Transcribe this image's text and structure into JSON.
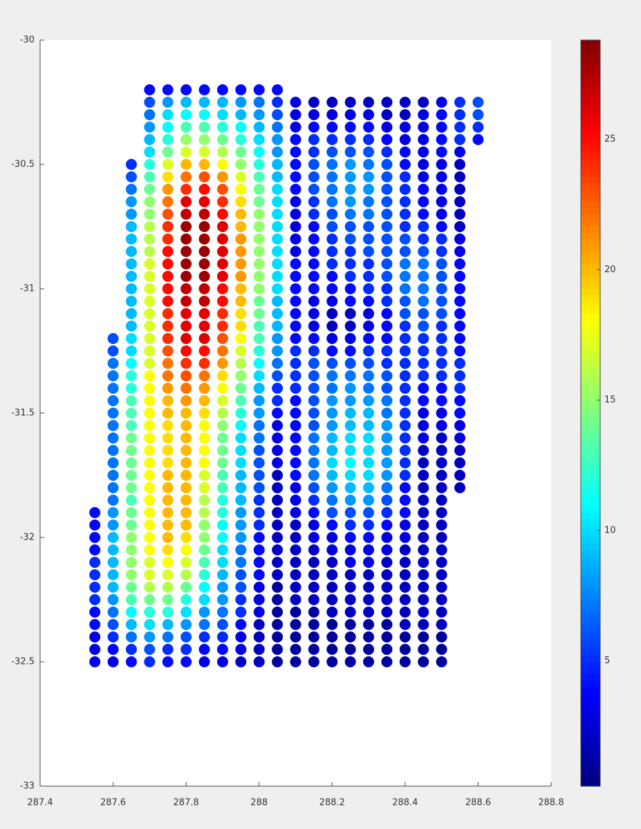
{
  "chart_data": {
    "type": "scatter-grid",
    "colormap": "jet",
    "x": [
      287.55,
      287.6,
      287.65,
      287.7,
      287.75,
      287.8,
      287.85,
      287.9,
      287.95,
      288.0,
      288.05,
      288.1,
      288.15,
      288.2,
      288.25,
      288.3,
      288.35,
      288.4,
      288.45,
      288.5,
      288.55,
      288.6
    ],
    "y": [
      -30.2,
      -30.25,
      -30.3,
      -30.35,
      -30.4,
      -30.45,
      -30.5,
      -30.55,
      -30.6,
      -30.65,
      -30.7,
      -30.75,
      -30.8,
      -30.85,
      -30.9,
      -30.95,
      -31.0,
      -31.05,
      -31.1,
      -31.15,
      -31.2,
      -31.25,
      -31.3,
      -31.35,
      -31.4,
      -31.45,
      -31.5,
      -31.55,
      -31.6,
      -31.65,
      -31.7,
      -31.75,
      -31.8,
      -31.85,
      -31.9,
      -31.95,
      -32.0,
      -32.05,
      -32.1,
      -32.15,
      -32.2,
      -32.25,
      -32.3,
      -32.35,
      -32.4,
      -32.45,
      -32.5
    ],
    "values": [
      [
        null,
        null,
        null,
        4,
        4,
        4,
        4,
        4,
        4,
        4,
        4,
        null,
        null,
        null,
        null,
        null,
        null,
        null,
        null,
        null,
        null,
        null
      ],
      [
        null,
        null,
        null,
        6,
        8,
        9,
        9,
        9,
        8,
        7,
        5,
        3,
        2,
        2,
        2,
        2,
        2,
        2,
        2,
        3,
        5,
        6
      ],
      [
        null,
        null,
        null,
        7,
        10,
        11,
        11,
        10,
        9,
        8,
        6,
        3,
        3,
        3,
        3,
        3,
        2,
        2,
        3,
        4,
        5,
        6
      ],
      [
        null,
        null,
        null,
        8,
        11,
        13,
        13,
        12,
        11,
        9,
        7,
        3,
        4,
        4,
        4,
        4,
        3,
        3,
        3,
        4,
        5,
        5
      ],
      [
        null,
        null,
        null,
        9,
        12,
        15,
        15,
        14,
        12,
        10,
        8,
        4,
        5,
        5,
        5,
        5,
        4,
        3,
        3,
        4,
        5,
        4
      ],
      [
        null,
        null,
        null,
        10,
        14,
        17,
        17,
        16,
        14,
        11,
        8,
        4,
        5,
        6,
        6,
        6,
        5,
        4,
        3,
        4,
        3,
        null
      ],
      [
        null,
        null,
        5,
        12,
        17,
        20,
        20,
        18,
        15,
        12,
        9,
        4,
        6,
        7,
        8,
        7,
        6,
        4,
        3,
        3,
        2,
        null
      ],
      [
        null,
        null,
        6,
        13,
        19,
        22,
        23,
        21,
        17,
        13,
        9,
        4,
        6,
        7,
        8,
        8,
        6,
        5,
        3,
        3,
        2,
        null
      ],
      [
        null,
        null,
        7,
        14,
        21,
        24,
        25,
        23,
        18,
        14,
        10,
        4,
        6,
        7,
        8,
        8,
        6,
        5,
        4,
        3,
        2,
        null
      ],
      [
        null,
        null,
        8,
        15,
        22,
        26,
        26,
        24,
        19,
        14,
        10,
        3,
        5,
        7,
        8,
        7,
        6,
        5,
        4,
        3,
        2,
        null
      ],
      [
        null,
        null,
        8,
        15,
        23,
        27,
        27,
        25,
        20,
        15,
        10,
        3,
        5,
        6,
        7,
        7,
        6,
        5,
        4,
        3,
        2,
        null
      ],
      [
        null,
        null,
        9,
        16,
        24,
        28,
        28,
        26,
        20,
        15,
        10,
        3,
        4,
        6,
        6,
        6,
        6,
        5,
        5,
        4,
        2,
        null
      ],
      [
        null,
        null,
        9,
        16,
        24,
        28,
        28,
        26,
        21,
        15,
        10,
        3,
        4,
        5,
        6,
        6,
        6,
        6,
        5,
        5,
        3,
        null
      ],
      [
        null,
        null,
        9,
        16,
        25,
        28,
        28,
        26,
        21,
        15,
        10,
        3,
        4,
        5,
        5,
        6,
        6,
        6,
        6,
        5,
        3,
        null
      ],
      [
        null,
        null,
        9,
        17,
        25,
        28,
        28,
        26,
        21,
        15,
        10,
        4,
        4,
        5,
        5,
        5,
        6,
        7,
        7,
        6,
        4,
        null
      ],
      [
        null,
        null,
        9,
        17,
        25,
        28,
        28,
        26,
        21,
        15,
        10,
        4,
        4,
        4,
        5,
        5,
        6,
        7,
        7,
        6,
        4,
        null
      ],
      [
        null,
        null,
        9,
        17,
        25,
        27,
        27,
        25,
        20,
        15,
        10,
        4,
        4,
        4,
        4,
        5,
        5,
        7,
        7,
        6,
        4,
        null
      ],
      [
        null,
        null,
        9,
        17,
        25,
        27,
        27,
        25,
        20,
        14,
        9,
        4,
        3,
        3,
        4,
        4,
        5,
        6,
        7,
        6,
        4,
        null
      ],
      [
        null,
        null,
        9,
        17,
        24,
        26,
        26,
        24,
        19,
        14,
        9,
        4,
        3,
        2,
        2,
        3,
        4,
        6,
        6,
        6,
        4,
        null
      ],
      [
        null,
        null,
        9,
        17,
        24,
        26,
        26,
        24,
        19,
        13,
        9,
        4,
        3,
        2,
        2,
        3,
        4,
        5,
        6,
        5,
        4,
        null
      ],
      [
        null,
        6,
        10,
        17,
        24,
        26,
        26,
        23,
        18,
        13,
        8,
        4,
        4,
        3,
        3,
        4,
        4,
        5,
        5,
        5,
        4,
        null
      ],
      [
        null,
        6,
        10,
        17,
        23,
        25,
        25,
        22,
        17,
        12,
        8,
        5,
        5,
        4,
        4,
        5,
        5,
        5,
        5,
        5,
        4,
        null
      ],
      [
        null,
        7,
        11,
        17,
        22,
        24,
        24,
        21,
        16,
        11,
        7,
        5,
        6,
        6,
        6,
        6,
        5,
        5,
        5,
        5,
        5,
        null
      ],
      [
        null,
        7,
        12,
        18,
        22,
        23,
        22,
        19,
        15,
        10,
        6,
        5,
        6,
        7,
        7,
        7,
        6,
        5,
        5,
        5,
        5,
        null
      ],
      [
        null,
        7,
        12,
        18,
        21,
        22,
        21,
        18,
        14,
        9,
        5,
        5,
        6,
        7,
        8,
        7,
        6,
        5,
        4,
        4,
        5,
        null
      ],
      [
        null,
        7,
        13,
        18,
        20,
        21,
        20,
        17,
        13,
        8,
        5,
        4,
        6,
        8,
        8,
        8,
        7,
        5,
        4,
        4,
        4,
        null
      ],
      [
        null,
        7,
        13,
        18,
        20,
        20,
        19,
        16,
        12,
        8,
        4,
        4,
        6,
        8,
        9,
        9,
        7,
        5,
        3,
        3,
        4,
        null
      ],
      [
        null,
        7,
        13,
        18,
        19,
        20,
        18,
        15,
        11,
        7,
        3,
        4,
        6,
        8,
        9,
        9,
        8,
        5,
        3,
        3,
        3,
        null
      ],
      [
        null,
        7,
        14,
        18,
        19,
        20,
        18,
        14,
        10,
        7,
        3,
        4,
        7,
        9,
        10,
        10,
        8,
        5,
        3,
        2,
        3,
        null
      ],
      [
        null,
        7,
        14,
        18,
        19,
        20,
        18,
        14,
        10,
        6,
        3,
        4,
        7,
        9,
        10,
        10,
        8,
        5,
        2,
        2,
        2,
        null
      ],
      [
        null,
        7,
        14,
        18,
        19,
        20,
        18,
        14,
        10,
        6,
        3,
        4,
        7,
        10,
        11,
        10,
        8,
        5,
        2,
        2,
        2,
        null
      ],
      [
        null,
        7,
        14,
        18,
        20,
        20,
        17,
        13,
        9,
        6,
        2,
        4,
        7,
        9,
        10,
        10,
        8,
        5,
        2,
        2,
        2,
        null
      ],
      [
        null,
        7,
        14,
        18,
        20,
        20,
        17,
        13,
        9,
        6,
        2,
        3,
        6,
        8,
        9,
        9,
        7,
        4,
        2,
        2,
        2,
        null
      ],
      [
        null,
        7,
        13,
        18,
        20,
        20,
        16,
        12,
        9,
        5,
        2,
        3,
        5,
        7,
        8,
        8,
        6,
        4,
        2,
        2,
        null,
        null
      ],
      [
        4,
        8,
        14,
        18,
        20,
        20,
        16,
        12,
        8,
        5,
        2,
        3,
        4,
        6,
        6,
        6,
        5,
        4,
        2,
        2,
        null,
        null
      ],
      [
        4,
        8,
        14,
        18,
        20,
        20,
        15,
        11,
        8,
        5,
        2,
        2,
        3,
        4,
        5,
        5,
        4,
        3,
        2,
        2,
        null,
        null
      ],
      [
        4,
        9,
        15,
        18,
        20,
        19,
        15,
        11,
        8,
        4,
        2,
        2,
        3,
        3,
        4,
        4,
        3,
        3,
        2,
        2,
        null,
        null
      ],
      [
        4,
        9,
        15,
        18,
        19,
        18,
        14,
        10,
        7,
        4,
        2,
        2,
        2,
        3,
        3,
        3,
        3,
        2,
        2,
        2,
        null,
        null
      ],
      [
        5,
        9,
        15,
        17,
        18,
        17,
        13,
        10,
        7,
        4,
        2,
        2,
        2,
        2,
        3,
        3,
        2,
        2,
        2,
        2,
        null,
        null
      ],
      [
        5,
        9,
        15,
        17,
        17,
        16,
        12,
        9,
        6,
        4,
        2,
        2,
        2,
        2,
        2,
        2,
        2,
        2,
        2,
        2,
        null,
        null
      ],
      [
        5,
        9,
        14,
        16,
        16,
        14,
        11,
        8,
        6,
        3,
        1,
        2,
        2,
        2,
        2,
        2,
        2,
        2,
        2,
        2,
        null,
        null
      ],
      [
        5,
        8,
        13,
        14,
        14,
        12,
        10,
        8,
        5,
        3,
        1,
        2,
        2,
        2,
        2,
        2,
        2,
        2,
        2,
        2,
        null,
        null
      ],
      [
        4,
        7,
        11,
        12,
        12,
        10,
        8,
        7,
        5,
        3,
        1,
        1,
        1,
        2,
        2,
        2,
        2,
        2,
        2,
        2,
        null,
        null
      ],
      [
        4,
        6,
        9,
        10,
        9,
        8,
        7,
        6,
        4,
        2,
        1,
        1,
        1,
        1,
        1,
        1,
        1,
        2,
        2,
        2,
        null,
        null
      ],
      [
        3,
        5,
        7,
        8,
        7,
        6,
        5,
        5,
        3,
        2,
        1,
        1,
        1,
        1,
        1,
        1,
        1,
        1,
        1,
        1,
        null,
        null
      ],
      [
        3,
        4,
        5,
        6,
        5,
        5,
        4,
        4,
        3,
        2,
        1,
        1,
        1,
        1,
        1,
        1,
        1,
        1,
        1,
        1,
        null,
        null
      ],
      [
        3,
        3,
        4,
        5,
        4,
        4,
        3,
        3,
        2,
        2,
        1,
        1,
        1,
        1,
        1,
        1,
        1,
        1,
        1,
        1,
        null,
        null
      ]
    ],
    "xlim": [
      287.4,
      288.8
    ],
    "xticks": [
      287.4,
      287.6,
      287.8,
      288,
      288.2,
      288.4,
      288.6,
      288.8
    ],
    "ylim": [
      -33,
      -30
    ],
    "yticks": [
      -33,
      -32.5,
      -32,
      -31.5,
      -31,
      -30.5,
      -30
    ],
    "clim": [
      0.2,
      28.8
    ],
    "cticks": [
      5,
      10,
      15,
      20,
      25
    ]
  }
}
